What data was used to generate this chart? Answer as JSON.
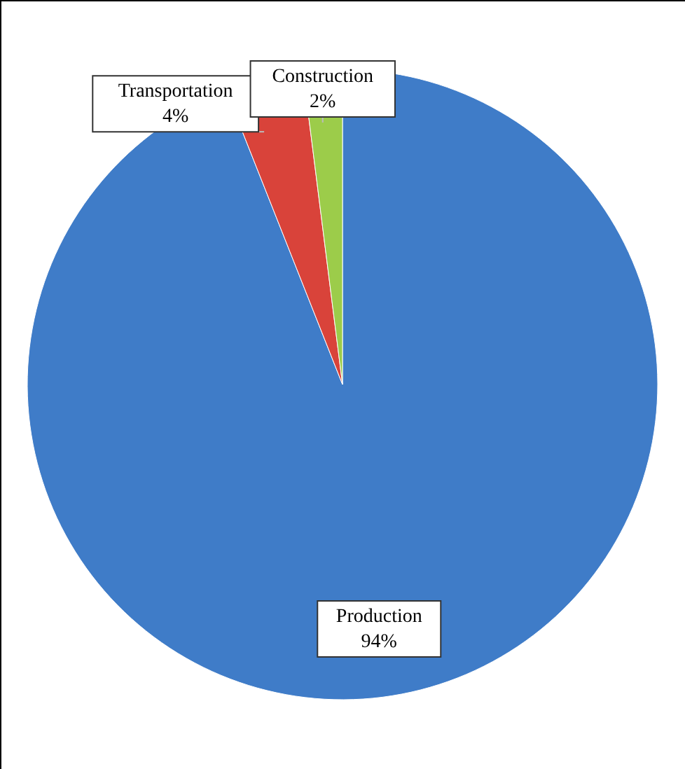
{
  "chart_data": {
    "type": "pie",
    "categories": [
      "Production",
      "Transportation",
      "Construction"
    ],
    "values": [
      94,
      4,
      2
    ],
    "colors": [
      "#3f7cc8",
      "#d9433a",
      "#9ccc4a"
    ],
    "value_labels": [
      "94%",
      "4%",
      "2%"
    ]
  }
}
